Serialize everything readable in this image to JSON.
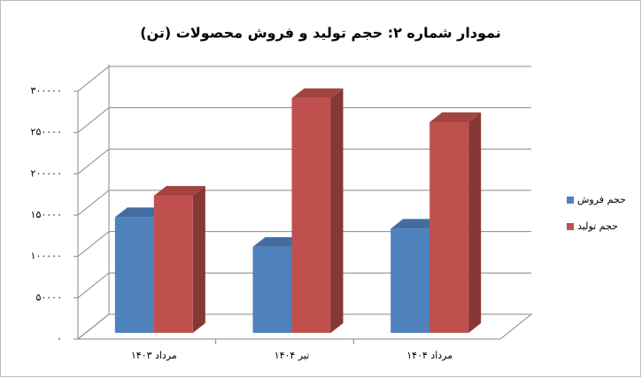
{
  "chart_data": {
    "type": "bar3d",
    "title": "نمودار شماره ۲: حجم تولید و فروش محصولات (تن)",
    "categories": [
      "مرداد ۱۴۰۳",
      "تیر ۱۴۰۴",
      "مرداد ۱۴۰۴"
    ],
    "series": [
      {
        "name": "حجم فروش",
        "color": "#4f81bd",
        "values": [
          140000,
          104000,
          126000
        ]
      },
      {
        "name": "حجم تولید",
        "color": "#c0504d",
        "values": [
          166000,
          284000,
          255000
        ]
      }
    ],
    "ylim": [
      0,
      300000
    ],
    "yticks": [
      {
        "value": 0,
        "label": "۰"
      },
      {
        "value": 50000,
        "label": "۵۰۰۰۰"
      },
      {
        "value": 100000,
        "label": "۱۰۰۰۰۰"
      },
      {
        "value": 150000,
        "label": "۱۵۰۰۰۰"
      },
      {
        "value": 200000,
        "label": "۲۰۰۰۰۰"
      },
      {
        "value": 250000,
        "label": "۲۵۰۰۰۰"
      },
      {
        "value": 300000,
        "label": "۳۰۰۰۰۰"
      }
    ],
    "grid": true,
    "legend": "right"
  }
}
